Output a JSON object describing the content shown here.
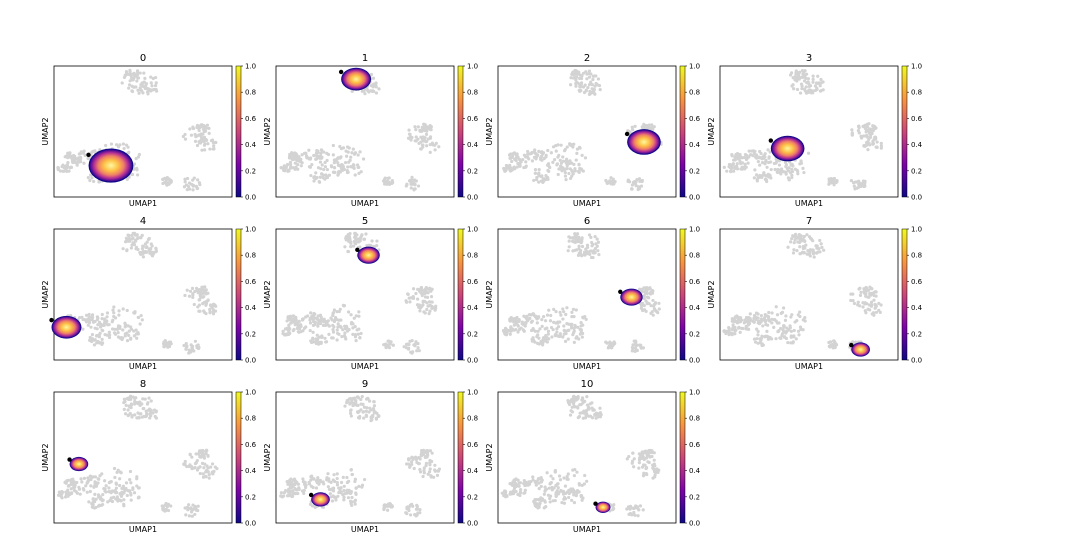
{
  "chart_data": {
    "type": "scatter",
    "subtype": "umap-embedding-density",
    "xlabel": "UMAP1",
    "ylabel": "UMAP2",
    "colorbar": {
      "colormap": "plasma",
      "vmin": 0.0,
      "vmax": 1.0,
      "ticks": [
        "0.0",
        "0.2",
        "0.4",
        "0.6",
        "0.8",
        "1.0"
      ]
    },
    "background_color": "#d3d3d3",
    "grid": false,
    "panels": [
      {
        "title": "0",
        "cluster_center": [
          0.32,
          0.76
        ],
        "spread": 0.12
      },
      {
        "title": "1",
        "cluster_center": [
          0.45,
          0.1
        ],
        "spread": 0.08
      },
      {
        "title": "2",
        "cluster_center": [
          0.82,
          0.58
        ],
        "spread": 0.09
      },
      {
        "title": "3",
        "cluster_center": [
          0.38,
          0.63
        ],
        "spread": 0.09
      },
      {
        "title": "4",
        "cluster_center": [
          0.07,
          0.75
        ],
        "spread": 0.08
      },
      {
        "title": "5",
        "cluster_center": [
          0.52,
          0.2
        ],
        "spread": 0.06
      },
      {
        "title": "6",
        "cluster_center": [
          0.75,
          0.52
        ],
        "spread": 0.06
      },
      {
        "title": "7",
        "cluster_center": [
          0.79,
          0.92
        ],
        "spread": 0.05
      },
      {
        "title": "8",
        "cluster_center": [
          0.14,
          0.55
        ],
        "spread": 0.05
      },
      {
        "title": "9",
        "cluster_center": [
          0.25,
          0.82
        ],
        "spread": 0.05
      },
      {
        "title": "10",
        "cluster_center": [
          0.59,
          0.88
        ],
        "spread": 0.04
      }
    ]
  }
}
